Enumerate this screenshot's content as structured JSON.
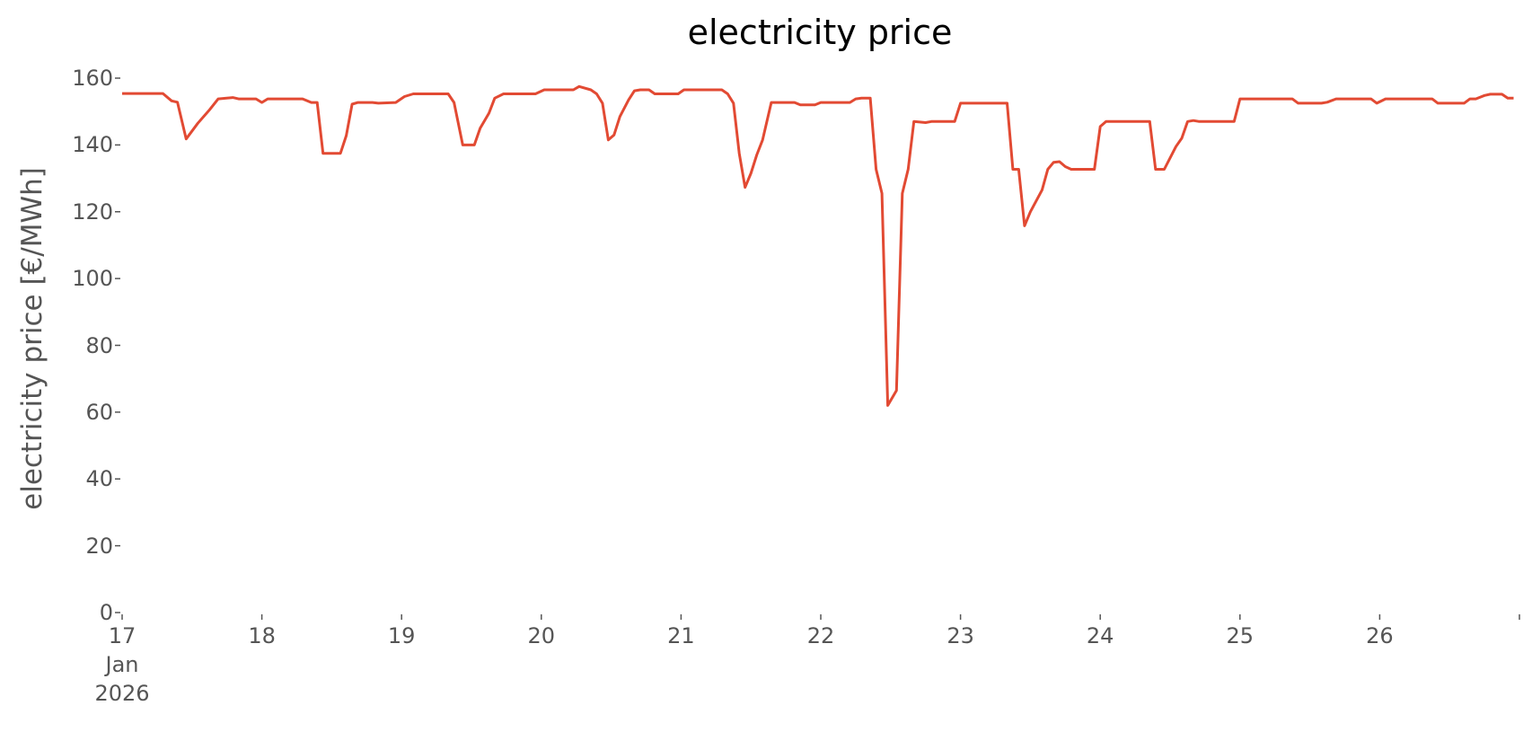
{
  "chart_data": {
    "type": "line",
    "title": "electricity price",
    "ylabel": "electricity price [€/MWh]",
    "xlabel": "",
    "ylim": [
      0,
      160
    ],
    "yticks": [
      "0",
      "20",
      "40",
      "60",
      "80",
      "100",
      "120",
      "140",
      "160"
    ],
    "xticks": [
      {
        "day": 17,
        "label": "17",
        "sub1": "Jan",
        "sub2": "2026"
      },
      {
        "day": 18,
        "label": "18"
      },
      {
        "day": 19,
        "label": "19"
      },
      {
        "day": 20,
        "label": "20"
      },
      {
        "day": 21,
        "label": "21"
      },
      {
        "day": 22,
        "label": "22"
      },
      {
        "day": 23,
        "label": "23"
      },
      {
        "day": 24,
        "label": "24"
      },
      {
        "day": 25,
        "label": "25"
      },
      {
        "day": 26,
        "label": "26"
      }
    ],
    "xlim": [
      "2026-01-17 00:00",
      "2026-01-26 23:59"
    ],
    "grid": false,
    "series": [
      {
        "color": "#e24a33",
        "points": [
          [
            "2026-01-17 00:00",
            155.4
          ],
          [
            "2026-01-17 07:00",
            155.4
          ],
          [
            "2026-01-17 08:30",
            153.2
          ],
          [
            "2026-01-17 09:30",
            152.8
          ],
          [
            "2026-01-17 11:00",
            141.8
          ],
          [
            "2026-01-17 13:00",
            146.5
          ],
          [
            "2026-01-17 15:00",
            150.5
          ],
          [
            "2026-01-17 16:30",
            153.8
          ],
          [
            "2026-01-17 19:00",
            154.2
          ],
          [
            "2026-01-17 20:00",
            153.8
          ],
          [
            "2026-01-17 23:00",
            153.8
          ],
          [
            "2026-01-18 00:00",
            152.7
          ],
          [
            "2026-01-18 01:00",
            153.8
          ],
          [
            "2026-01-18 07:00",
            153.8
          ],
          [
            "2026-01-18 08:30",
            152.7
          ],
          [
            "2026-01-18 09:30",
            152.7
          ],
          [
            "2026-01-18 10:30",
            137.5
          ],
          [
            "2026-01-18 13:30",
            137.5
          ],
          [
            "2026-01-18 14:30",
            142.8
          ],
          [
            "2026-01-18 15:30",
            152.2
          ],
          [
            "2026-01-18 16:30",
            152.7
          ],
          [
            "2026-01-18 19:00",
            152.7
          ],
          [
            "2026-01-18 20:00",
            152.5
          ],
          [
            "2026-01-18 23:00",
            152.7
          ],
          [
            "2026-01-19 00:30",
            154.5
          ],
          [
            "2026-01-19 02:00",
            155.3
          ],
          [
            "2026-01-19 08:00",
            155.3
          ],
          [
            "2026-01-19 09:00",
            152.7
          ],
          [
            "2026-01-19 10:30",
            140.0
          ],
          [
            "2026-01-19 12:30",
            140.0
          ],
          [
            "2026-01-19 13:30",
            145.0
          ],
          [
            "2026-01-19 15:00",
            149.5
          ],
          [
            "2026-01-19 16:00",
            154.0
          ],
          [
            "2026-01-19 17:30",
            155.3
          ],
          [
            "2026-01-19 23:00",
            155.3
          ],
          [
            "2026-01-20 00:30",
            156.5
          ],
          [
            "2026-01-20 05:30",
            156.5
          ],
          [
            "2026-01-20 06:30",
            157.5
          ],
          [
            "2026-01-20 08:30",
            156.5
          ],
          [
            "2026-01-20 09:30",
            155.3
          ],
          [
            "2026-01-20 10:30",
            152.5
          ],
          [
            "2026-01-20 11:30",
            141.5
          ],
          [
            "2026-01-20 12:30",
            143.0
          ],
          [
            "2026-01-20 13:30",
            148.5
          ],
          [
            "2026-01-20 15:00",
            153.5
          ],
          [
            "2026-01-20 16:00",
            156.2
          ],
          [
            "2026-01-20 17:00",
            156.5
          ],
          [
            "2026-01-20 18:30",
            156.5
          ],
          [
            "2026-01-20 19:30",
            155.3
          ],
          [
            "2026-01-20 23:30",
            155.3
          ],
          [
            "2026-01-21 00:30",
            156.5
          ],
          [
            "2026-01-21 07:00",
            156.5
          ],
          [
            "2026-01-21 08:00",
            155.3
          ],
          [
            "2026-01-21 09:00",
            152.5
          ],
          [
            "2026-01-21 10:00",
            137.5
          ],
          [
            "2026-01-21 11:00",
            127.3
          ],
          [
            "2026-01-21 12:00",
            131.5
          ],
          [
            "2026-01-21 13:00",
            137.0
          ],
          [
            "2026-01-21 14:00",
            141.5
          ],
          [
            "2026-01-21 15:30",
            152.7
          ],
          [
            "2026-01-21 19:30",
            152.7
          ],
          [
            "2026-01-21 20:30",
            152.0
          ],
          [
            "2026-01-21 23:00",
            152.0
          ],
          [
            "2026-01-22 00:00",
            152.7
          ],
          [
            "2026-01-22 05:00",
            152.7
          ],
          [
            "2026-01-22 06:00",
            153.8
          ],
          [
            "2026-01-22 07:00",
            154.0
          ],
          [
            "2026-01-22 08:30",
            154.0
          ],
          [
            "2026-01-22 09:30",
            132.7
          ],
          [
            "2026-01-22 10:30",
            125.5
          ],
          [
            "2026-01-22 11:30",
            62.0
          ],
          [
            "2026-01-22 13:00",
            66.5
          ],
          [
            "2026-01-22 14:00",
            125.5
          ],
          [
            "2026-01-22 15:00",
            132.7
          ],
          [
            "2026-01-22 16:00",
            147.0
          ],
          [
            "2026-01-22 18:00",
            146.7
          ],
          [
            "2026-01-22 19:00",
            147.0
          ],
          [
            "2026-01-22 23:00",
            147.0
          ],
          [
            "2026-01-23 00:00",
            152.5
          ],
          [
            "2026-01-23 08:00",
            152.5
          ],
          [
            "2026-01-23 09:00",
            132.7
          ],
          [
            "2026-01-23 10:00",
            132.7
          ],
          [
            "2026-01-23 11:00",
            115.8
          ],
          [
            "2026-01-23 12:00",
            120.0
          ],
          [
            "2026-01-23 14:00",
            126.5
          ],
          [
            "2026-01-23 15:00",
            132.7
          ],
          [
            "2026-01-23 16:00",
            134.8
          ],
          [
            "2026-01-23 17:00",
            135.0
          ],
          [
            "2026-01-23 18:00",
            133.5
          ],
          [
            "2026-01-23 19:00",
            132.7
          ],
          [
            "2026-01-23 23:00",
            132.7
          ],
          [
            "2026-01-24 00:00",
            145.5
          ],
          [
            "2026-01-24 01:00",
            147.0
          ],
          [
            "2026-01-24 08:30",
            147.0
          ],
          [
            "2026-01-24 09:30",
            132.7
          ],
          [
            "2026-01-24 11:00",
            132.7
          ],
          [
            "2026-01-24 13:00",
            139.5
          ],
          [
            "2026-01-24 14:00",
            142.0
          ],
          [
            "2026-01-24 15:00",
            147.0
          ],
          [
            "2026-01-24 16:00",
            147.3
          ],
          [
            "2026-01-24 17:00",
            147.0
          ],
          [
            "2026-01-24 23:00",
            147.0
          ],
          [
            "2026-01-25 00:00",
            153.8
          ],
          [
            "2026-01-25 09:00",
            153.8
          ],
          [
            "2026-01-25 10:00",
            152.5
          ],
          [
            "2026-01-25 14:00",
            152.5
          ],
          [
            "2026-01-25 15:00",
            152.8
          ],
          [
            "2026-01-25 16:30",
            153.8
          ],
          [
            "2026-01-25 22:30",
            153.8
          ],
          [
            "2026-01-25 23:30",
            152.5
          ],
          [
            "2026-01-26 01:00",
            153.8
          ],
          [
            "2026-01-26 09:00",
            153.8
          ],
          [
            "2026-01-26 10:00",
            152.5
          ],
          [
            "2026-01-26 14:30",
            152.5
          ],
          [
            "2026-01-26 15:30",
            153.8
          ],
          [
            "2026-01-26 16:30",
            153.8
          ],
          [
            "2026-01-26 18:00",
            154.8
          ],
          [
            "2026-01-26 19:00",
            155.2
          ],
          [
            "2026-01-26 21:00",
            155.2
          ],
          [
            "2026-01-26 22:00",
            154.0
          ],
          [
            "2026-01-26 23:00",
            154.0
          ]
        ]
      }
    ]
  }
}
